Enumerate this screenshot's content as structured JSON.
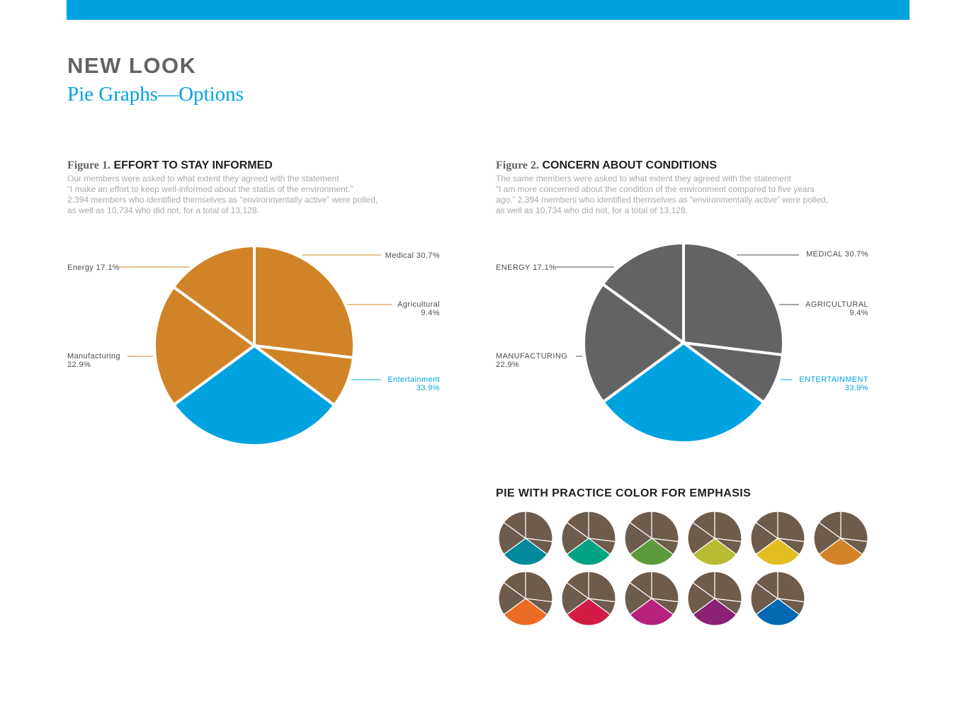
{
  "header": {
    "title": "NEW LOOK",
    "subtitle": "Pie Graphs—Options"
  },
  "colors": {
    "accent": "#00a3e0",
    "fig1_slice": "#d08427",
    "fig2_slice": "#636265",
    "emphasis_base": "#6d5b4c",
    "emphasis_variants": [
      "#00889b",
      "#00a384",
      "#5c9a3c",
      "#b5bc31",
      "#e3be23",
      "#d08427",
      "#ec6b25",
      "#d31b45",
      "#b8217c",
      "#8a2174",
      "#0069b2"
    ]
  },
  "figure1": {
    "label": "Figure 1.",
    "title": "EFFORT TO STAY INFORMED",
    "description": [
      "Our members were asked to what extent they agreed with the statement",
      "“I make an effort to keep well-informed about the status of the environment.”",
      "2,394 members who identified themselves as “environmentally active” were polled,",
      "as well as 10,734 who did not, for a total of 13,128."
    ],
    "slice_labels": [
      {
        "name": "Medical",
        "value": "30.7%"
      },
      {
        "name": "Agricultural",
        "value": "9.4%"
      },
      {
        "name": "Entertainment",
        "value": "33.9%"
      },
      {
        "name": "Manufacturing",
        "value": "22.9%"
      },
      {
        "name": "Energy",
        "value": "17.1%"
      }
    ]
  },
  "figure2": {
    "label": "Figure 2.",
    "title": "CONCERN ABOUT CONDITIONS",
    "description": [
      "The same members were asked to what extent they agreed with the statement",
      "“I am more concerned about the condition of the environment compared to five years",
      "ago.” 2,394 members who identified themselves as “environmentally active” were polled,",
      "as well as 10,734 who did not, for a total of 13,128."
    ],
    "slice_labels": [
      {
        "name": "MEDICAL",
        "value": "30.7%"
      },
      {
        "name": "AGRICULTURAL",
        "value": "9.4%"
      },
      {
        "name": "ENTERTAINMENT",
        "value": "33.9%"
      },
      {
        "name": "MANUFACTURING",
        "value": "22.9%"
      },
      {
        "name": "ENERGY",
        "value": "17.1%"
      }
    ]
  },
  "emphasis": {
    "title": "PIE WITH PRACTICE COLOR FOR EMPHASIS"
  },
  "chart_data": [
    {
      "type": "pie",
      "title": "EFFORT TO STAY INFORMED",
      "categories": [
        "Medical",
        "Agricultural",
        "Entertainment",
        "Manufacturing",
        "Energy"
      ],
      "values": [
        30.7,
        9.4,
        33.9,
        22.9,
        17.1
      ],
      "highlight": "Entertainment"
    },
    {
      "type": "pie",
      "title": "CONCERN ABOUT CONDITIONS",
      "categories": [
        "MEDICAL",
        "AGRICULTURAL",
        "ENTERTAINMENT",
        "MANUFACTURING",
        "ENERGY"
      ],
      "values": [
        30.7,
        9.4,
        33.9,
        22.9,
        17.1
      ],
      "highlight": "ENTERTAINMENT"
    }
  ]
}
